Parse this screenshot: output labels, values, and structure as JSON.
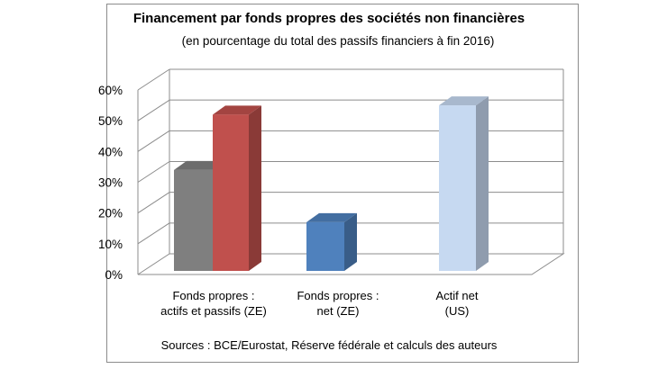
{
  "chart_data": {
    "type": "bar",
    "title": "Financement par fonds propres des sociétés non financières",
    "subtitle": "(en pourcentage du total des passifs financiers à fin 2016)",
    "source": "Sources : BCE/Eurostat, Réserve fédérale et calculs des auteurs",
    "categories": [
      [
        "Fonds propres :",
        "actifs et passifs (ZE)"
      ],
      [
        "Fonds propres :",
        "net   (ZE)"
      ],
      [
        "Actif net",
        "(US)"
      ]
    ],
    "yticks": [
      "0%",
      "10%",
      "20%",
      "30%",
      "40%",
      "50%",
      "60%"
    ],
    "ylim": [
      0,
      60
    ],
    "grid": true,
    "style_3d": true,
    "bars": [
      {
        "category_index": 0,
        "value": 34,
        "color": "#7f7f7f"
      },
      {
        "category_index": 0,
        "value": 52,
        "color": "#c0504d"
      },
      {
        "category_index": 1,
        "value": 17,
        "color": "#4f81bd"
      },
      {
        "category_index": 2,
        "value": 55,
        "color": "#c6d9f1"
      }
    ]
  }
}
